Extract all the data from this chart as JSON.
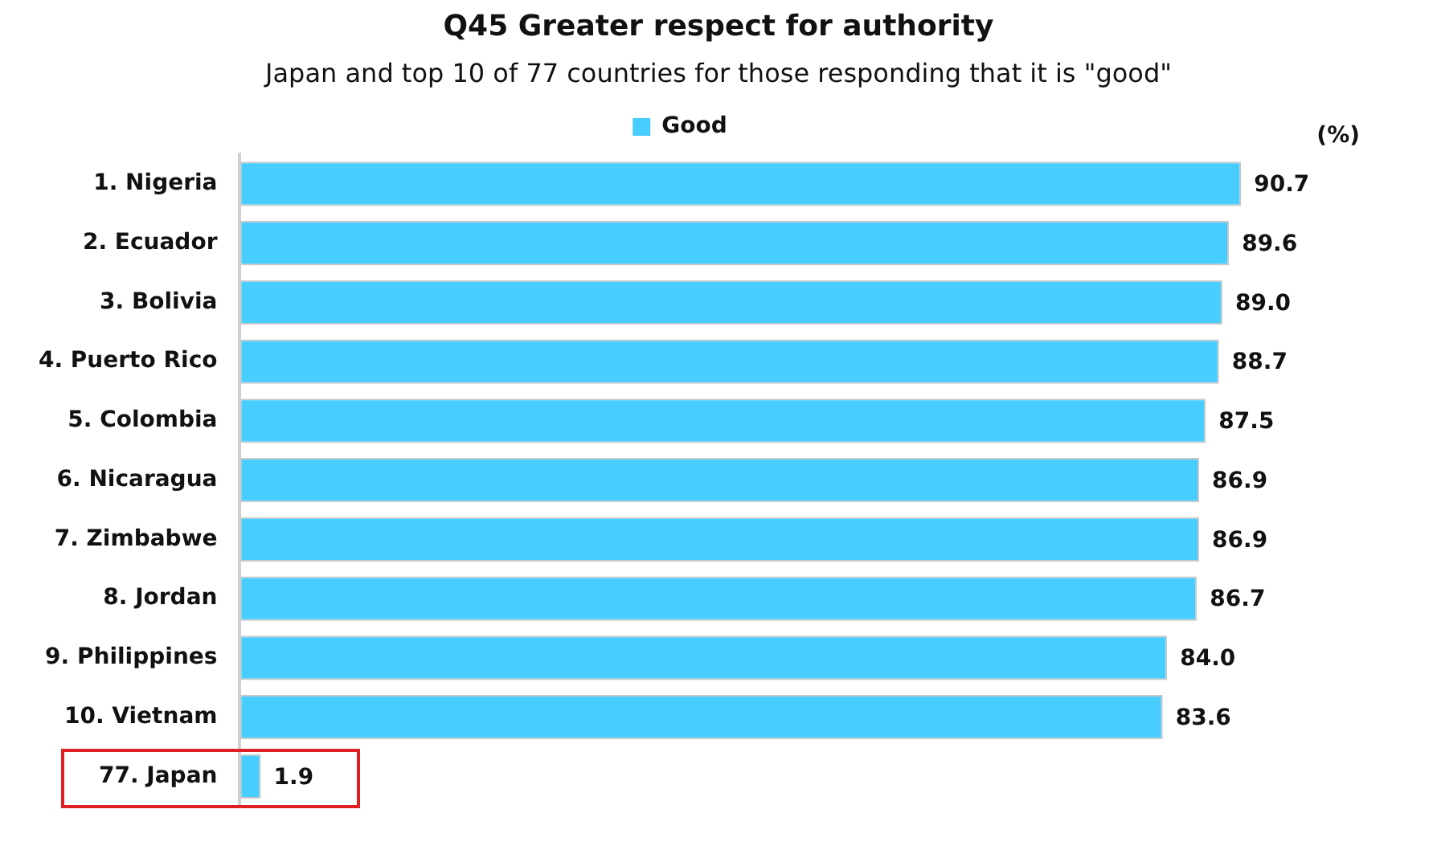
{
  "chart_data": {
    "type": "bar",
    "orientation": "horizontal",
    "title": "Q45 Greater respect for authority",
    "subtitle": "Japan and top 10 of 77 countries for those responding that it is \"good\"",
    "xlabel": "(%)",
    "categories": [
      "1. Nigeria",
      "2. Ecuador",
      "3. Bolivia",
      "4. Puerto Rico",
      "5. Colombia",
      "6. Nicaragua",
      "7. Zimbabwe",
      "8. Jordan",
      "9. Philippines",
      "10. Vietnam",
      "77. Japan"
    ],
    "series": [
      {
        "name": "Good",
        "color": "#47cdff",
        "values": [
          90.7,
          89.6,
          89.0,
          88.7,
          87.5,
          86.9,
          86.9,
          86.7,
          84.0,
          83.6,
          1.9
        ],
        "value_labels": [
          "90.7",
          "89.6",
          "89.0",
          "88.7",
          "87.5",
          "86.9",
          "86.9",
          "86.7",
          "84.0",
          "83.6",
          "1.9"
        ]
      }
    ],
    "legend": "top"
  }
}
